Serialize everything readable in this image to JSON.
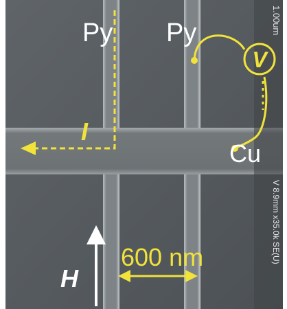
{
  "labels": {
    "py_left": "Py",
    "py_right": "Py",
    "voltage": "V",
    "current": "I",
    "cu": "Cu",
    "scale": "600 nm",
    "field": "H"
  },
  "sem_info": {
    "scale_bar": "1.00um",
    "settings": "V 8.9mm x35.0k SE(U)"
  }
}
